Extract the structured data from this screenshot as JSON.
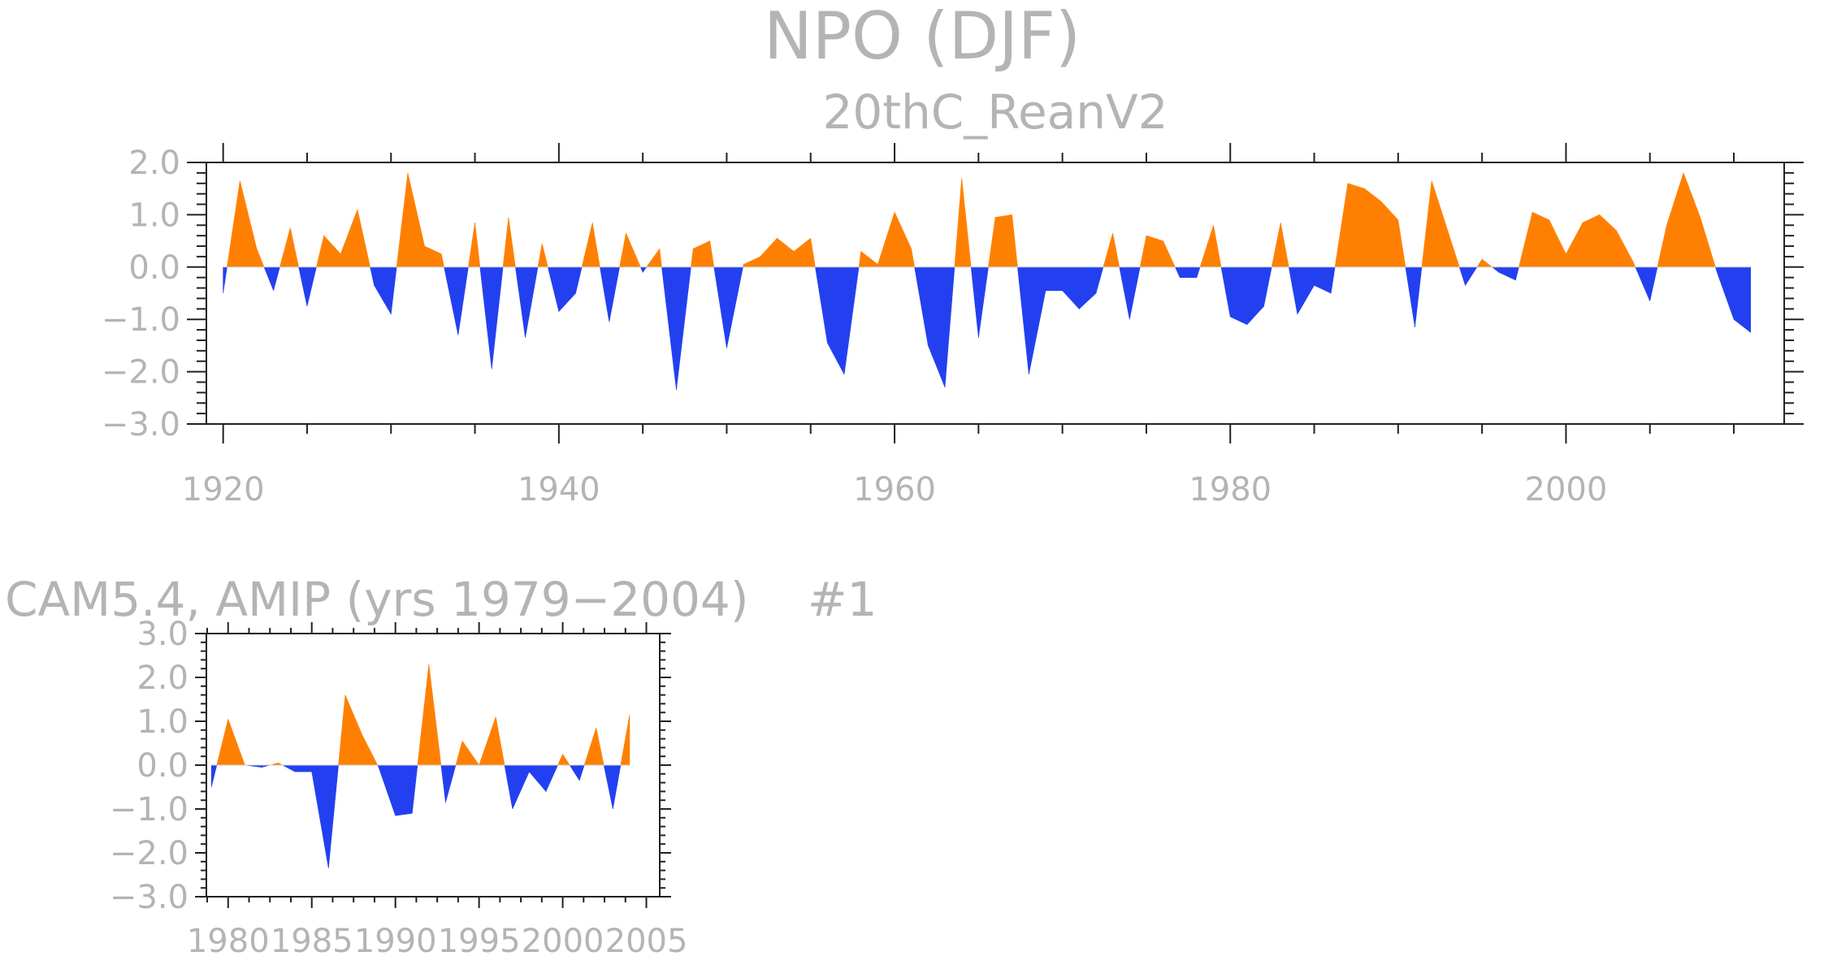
{
  "title": "NPO (DJF)",
  "colors": {
    "positive": "#ff8000",
    "negative": "#2340f0",
    "text": "#b4b4b4",
    "axis": "#222222"
  },
  "chart_data": [
    {
      "type": "area",
      "subtitle": "20thC_ReanV2",
      "xlim": [
        1919,
        2013
      ],
      "ylim": [
        -3.0,
        2.0
      ],
      "yticks": [
        2.0,
        1.0,
        0.0,
        -1.0,
        -2.0,
        -3.0
      ],
      "ytick_labels": [
        "2.0",
        "1.0",
        "0.0",
        "−1.0",
        "−2.0",
        "−3.0"
      ],
      "xticks": [
        1920,
        1940,
        1960,
        1980,
        2000
      ],
      "xtick_labels": [
        "1920",
        "1940",
        "1960",
        "1980",
        "2000"
      ],
      "x_start": 1920,
      "values": [
        -0.5,
        1.65,
        0.35,
        -0.45,
        0.75,
        -0.75,
        0.6,
        0.25,
        1.1,
        -0.35,
        -0.9,
        1.8,
        0.4,
        0.25,
        -1.3,
        0.85,
        -1.95,
        0.95,
        -1.35,
        0.45,
        -0.85,
        -0.5,
        0.85,
        -1.05,
        0.65,
        -0.1,
        0.35,
        -2.35,
        0.35,
        0.5,
        -1.55,
        0.05,
        0.2,
        0.55,
        0.3,
        0.55,
        -1.45,
        -2.05,
        0.3,
        0.05,
        1.05,
        0.35,
        -1.5,
        -2.3,
        1.7,
        -1.35,
        0.95,
        1.0,
        -2.05,
        -0.45,
        -0.45,
        -0.8,
        -0.5,
        0.65,
        -1.0,
        0.6,
        0.5,
        -0.2,
        -0.2,
        0.8,
        -0.95,
        -1.1,
        -0.75,
        0.85,
        -0.9,
        -0.35,
        -0.5,
        1.6,
        1.5,
        1.25,
        0.9,
        -1.15,
        1.65,
        0.65,
        -0.35,
        0.15,
        -0.1,
        -0.25,
        1.05,
        0.9,
        0.25,
        0.85,
        1.0,
        0.7,
        0.1,
        -0.65,
        0.8,
        1.8,
        0.95,
        -0.1,
        -1.0,
        -1.25
      ]
    },
    {
      "type": "area",
      "subtitle": "CAM5.4, AMIP (yrs 1979−2004)",
      "label": "#1",
      "xlim": [
        1978.7,
        2005.8
      ],
      "ylim": [
        -3.0,
        3.0
      ],
      "yticks": [
        3.0,
        2.0,
        1.0,
        0.0,
        -1.0,
        -2.0,
        -3.0
      ],
      "ytick_labels": [
        "3.0",
        "2.0",
        "1.0",
        "0.0",
        "−1.0",
        "−2.0",
        "−3.0"
      ],
      "xticks": [
        1980,
        1985,
        1990,
        1995,
        2000,
        2005
      ],
      "xtick_labels": [
        "1980",
        "1985",
        "1990",
        "1995",
        "2000",
        "2005"
      ],
      "x_start": 1979,
      "values": [
        -0.5,
        1.05,
        0.0,
        -0.05,
        0.05,
        -0.15,
        -0.15,
        -2.35,
        1.6,
        0.7,
        -0.05,
        -1.15,
        -1.1,
        2.3,
        -0.85,
        0.55,
        0.0,
        1.1,
        -1.0,
        -0.15,
        -0.6,
        0.25,
        -0.35,
        0.85,
        -1.0,
        1.15
      ]
    }
  ]
}
